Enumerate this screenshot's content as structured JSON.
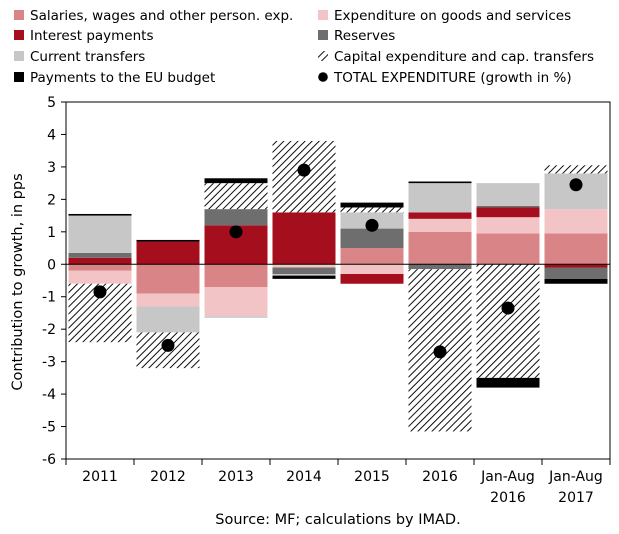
{
  "chart_data": {
    "type": "bar",
    "stacked": true,
    "ylabel": "Contribution to growth, in pps",
    "ylim": [
      -6,
      5
    ],
    "yticks": [
      "-6",
      "-5",
      "-4",
      "-3",
      "-2",
      "-1",
      "0",
      "1",
      "2",
      "3",
      "4",
      "5"
    ],
    "categories": [
      "2011",
      "2012",
      "2013",
      "2014",
      "2015",
      "2016",
      "Jan-Aug\n2016",
      "Jan-Aug\n2017"
    ],
    "source": "Source: MF; calculations by IMAD.",
    "legend_position": "top",
    "series": [
      {
        "name": "Salaries, wages and other person. exp.",
        "color": "#d98587",
        "pattern": "solid",
        "values": [
          -0.2,
          -0.9,
          -0.7,
          0.0,
          0.5,
          1.0,
          0.95,
          0.95
        ]
      },
      {
        "name": "Expenditure on goods and services",
        "color": "#f2c4c5",
        "pattern": "solid",
        "values": [
          -0.4,
          -0.4,
          -0.9,
          -0.1,
          -0.3,
          0.4,
          0.5,
          0.75
        ]
      },
      {
        "name": "Interest payments",
        "color": "#a50e1c",
        "pattern": "solid",
        "values": [
          0.2,
          0.7,
          1.2,
          1.6,
          -0.3,
          0.2,
          0.3,
          -0.1
        ]
      },
      {
        "name": "Reserves",
        "color": "#6e6e6e",
        "pattern": "solid",
        "values": [
          0.15,
          0.0,
          0.5,
          -0.2,
          0.6,
          -0.15,
          0.05,
          -0.35
        ]
      },
      {
        "name": "Current transfers",
        "color": "#c7c7c7",
        "pattern": "solid",
        "values": [
          1.15,
          -0.8,
          -0.05,
          -0.05,
          0.5,
          0.9,
          0.7,
          1.1
        ]
      },
      {
        "name": "Capital expenditure and cap. transfers",
        "color": "#000000",
        "pattern": "hatch",
        "values": [
          -1.8,
          -1.1,
          0.8,
          2.2,
          0.15,
          -5.0,
          -3.5,
          0.25
        ]
      },
      {
        "name": "Payments to the EU budget",
        "color": "#000000",
        "pattern": "solid",
        "values": [
          0.05,
          0.05,
          0.15,
          -0.1,
          0.15,
          0.05,
          -0.3,
          -0.15
        ]
      },
      {
        "name": "TOTAL EXPENDITURE (growth in %)",
        "type": "scatter",
        "color": "#000000",
        "values": [
          -0.85,
          -2.5,
          1.0,
          2.9,
          1.2,
          -2.7,
          -1.35,
          2.45
        ]
      }
    ]
  }
}
